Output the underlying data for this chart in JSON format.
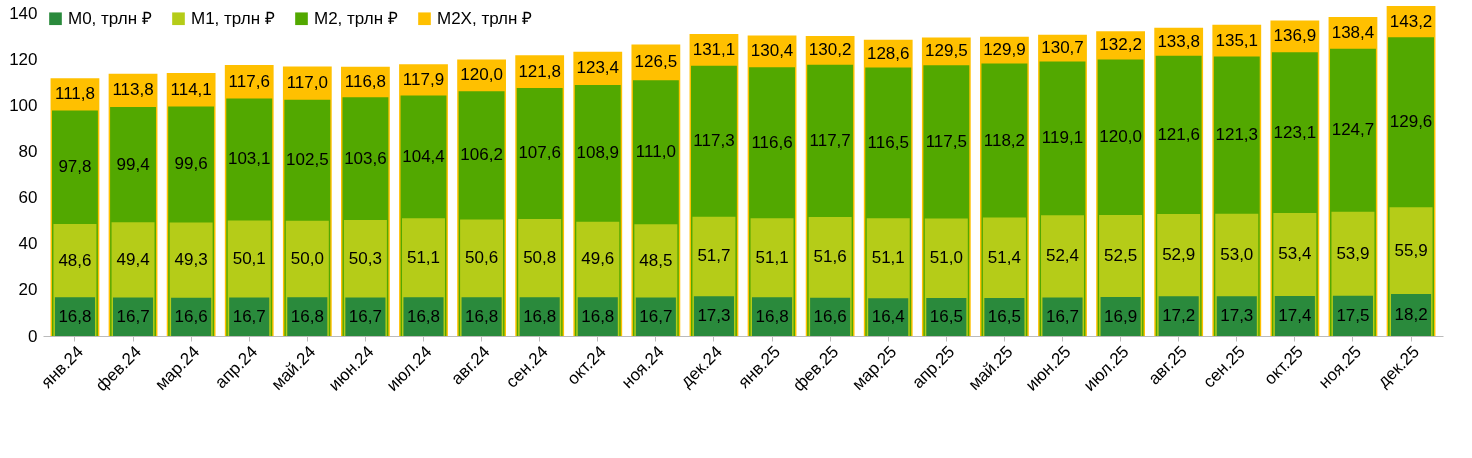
{
  "chart_data": {
    "type": "bar",
    "categories": [
      "янв.24",
      "фев.24",
      "мар.24",
      "апр.24",
      "май.24",
      "июн.24",
      "июл.24",
      "авг.24",
      "сен.24",
      "окт.24",
      "ноя.24",
      "дек.24",
      "янв.25",
      "фев.25",
      "мар.25",
      "апр.25",
      "май.25",
      "июн.25",
      "июл.25",
      "авг.25",
      "сен.25",
      "окт.25",
      "ноя.25",
      "дек.25"
    ],
    "series": [
      {
        "name": "М0, трлн ₽",
        "color": "#2a8a3c",
        "values": [
          16.8,
          16.7,
          16.6,
          16.7,
          16.8,
          16.7,
          16.8,
          16.8,
          16.8,
          16.8,
          16.7,
          17.3,
          16.8,
          16.6,
          16.4,
          16.5,
          16.5,
          16.7,
          16.9,
          17.2,
          17.3,
          17.4,
          17.5,
          18.2
        ],
        "value_labels": [
          "16,8",
          "16,7",
          "16,6",
          "16,7",
          "16,8",
          "16,7",
          "16,8",
          "16,8",
          "16,8",
          "16,8",
          "16,7",
          "17,3",
          "16,8",
          "16,6",
          "16,4",
          "16,5",
          "16,5",
          "16,7",
          "16,9",
          "17,2",
          "17,3",
          "17,4",
          "17,5",
          "18,2"
        ]
      },
      {
        "name": "М1, трлн ₽",
        "color": "#b5cc18",
        "values": [
          48.6,
          49.4,
          49.3,
          50.1,
          50.0,
          50.3,
          51.1,
          50.6,
          50.8,
          49.6,
          48.5,
          51.7,
          51.1,
          51.6,
          51.1,
          51.0,
          51.4,
          52.4,
          52.5,
          52.9,
          53.0,
          53.4,
          53.9,
          55.9
        ],
        "value_labels": [
          "48,6",
          "49,4",
          "49,3",
          "50,1",
          "50,0",
          "50,3",
          "51,1",
          "50,6",
          "50,8",
          "49,6",
          "48,5",
          "51,7",
          "51,1",
          "51,6",
          "51,1",
          "51,0",
          "51,4",
          "52,4",
          "52,5",
          "52,9",
          "53,0",
          "53,4",
          "53,9",
          "55,9"
        ]
      },
      {
        "name": "М2, трлн ₽",
        "color": "#52a800",
        "values": [
          97.8,
          99.4,
          99.6,
          103.1,
          102.5,
          103.6,
          104.4,
          106.2,
          107.6,
          108.9,
          111.0,
          117.3,
          116.6,
          117.7,
          116.5,
          117.5,
          118.2,
          119.1,
          120.0,
          121.6,
          121.3,
          123.1,
          124.7,
          129.6
        ],
        "value_labels": [
          "97,8",
          "99,4",
          "99,6",
          "103,1",
          "102,5",
          "103,6",
          "104,4",
          "106,2",
          "107,6",
          "108,9",
          "111,0",
          "117,3",
          "116,6",
          "117,7",
          "116,5",
          "117,5",
          "118,2",
          "119,1",
          "120,0",
          "121,6",
          "121,3",
          "123,1",
          "124,7",
          "129,6"
        ]
      },
      {
        "name": "М2Х, трлн ₽",
        "color": "#ffc000",
        "values": [
          111.8,
          113.8,
          114.1,
          117.6,
          117.0,
          116.8,
          117.9,
          120.0,
          121.8,
          123.4,
          126.5,
          131.1,
          130.4,
          130.2,
          128.6,
          129.5,
          129.9,
          130.7,
          132.2,
          133.8,
          135.1,
          136.9,
          138.4,
          143.2
        ],
        "value_labels": [
          "111,8",
          "113,8",
          "114,1",
          "117,6",
          "117,0",
          "116,8",
          "117,9",
          "120,0",
          "121,8",
          "123,4",
          "126,5",
          "131,1",
          "130,4",
          "130,2",
          "128,6",
          "129,5",
          "129,9",
          "130,7",
          "132,2",
          "133,8",
          "135,1",
          "136,9",
          "138,4",
          "143,2"
        ]
      }
    ],
    "ylim": [
      0,
      143.2
    ],
    "yticks": [
      0,
      20,
      40,
      60,
      80,
      100,
      120,
      140
    ],
    "grid": false,
    "legend": "top left"
  }
}
